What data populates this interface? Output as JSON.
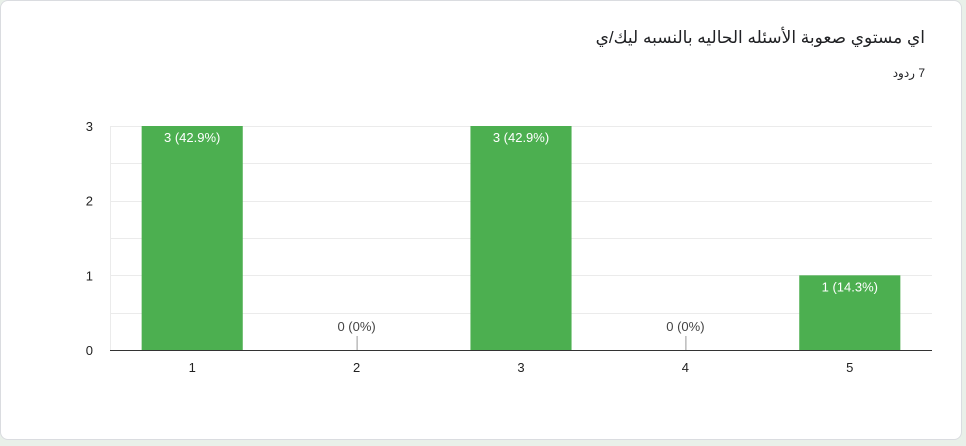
{
  "card": {
    "title": "اي مستوي صعوبة الأسئله الحاليه بالنسبه ليك/ي",
    "responses": "7 ردود"
  },
  "colors": {
    "bar": "#4caf50",
    "grid": "#ebebeb",
    "axis": "#333333",
    "label_inside": "#ffffff",
    "label_outside": "#444444"
  },
  "chart_data": {
    "type": "bar",
    "categories": [
      "1",
      "2",
      "3",
      "4",
      "5"
    ],
    "values": [
      3,
      0,
      3,
      0,
      1
    ],
    "labels": [
      "3 (42.9%)",
      "0 (0%)",
      "3 (42.9%)",
      "0 (0%)",
      "1 (14.3%)"
    ],
    "ylim": [
      0,
      3
    ],
    "yticks": [
      "0",
      "1",
      "2",
      "3"
    ],
    "minor_grid_step": 0.5,
    "grid": true,
    "legend": "none"
  }
}
